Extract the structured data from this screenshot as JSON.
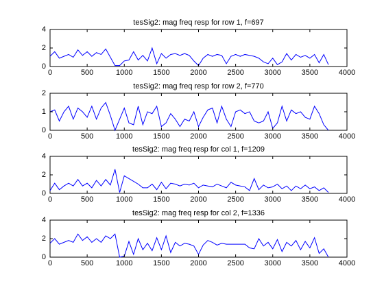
{
  "chart_data": [
    {
      "type": "line",
      "title": "tesSig2: mag freq resp for row 1, f=697",
      "x": [
        0,
        62.5,
        125,
        187.5,
        250,
        312.5,
        375,
        437.5,
        500,
        562.5,
        625,
        687.5,
        750,
        812.5,
        875,
        937.5,
        1000,
        1062.5,
        1125,
        1187.5,
        1250,
        1312.5,
        1375,
        1437.5,
        1500,
        1562.5,
        1625,
        1687.5,
        1750,
        1812.5,
        1875,
        1937.5,
        2000,
        2062.5,
        2125,
        2187.5,
        2250,
        2312.5,
        2375,
        2437.5,
        2500,
        2562.5,
        2625,
        2687.5,
        2750,
        2812.5,
        2875,
        2937.5,
        3000,
        3062.5,
        3125,
        3187.5,
        3250,
        3312.5,
        3375,
        3437.5,
        3500,
        3562.5,
        3625,
        3687.5,
        3750
      ],
      "series": [
        {
          "color": "#0000ff",
          "values": [
            1.1,
            1.6,
            0.9,
            1.1,
            1.3,
            1.0,
            1.8,
            1.2,
            1.6,
            1.1,
            1.5,
            1.3,
            1.9,
            1.0,
            0.1,
            0.1,
            0.6,
            0.7,
            1.6,
            0.7,
            1.2,
            0.6,
            2.0,
            0.3,
            1.4,
            0.9,
            1.3,
            1.4,
            1.2,
            1.4,
            1.2,
            0.6,
            0.1,
            0.9,
            1.3,
            1.1,
            1.3,
            1.2,
            0.3,
            1.1,
            1.3,
            1.1,
            1.3,
            1.2,
            1.1,
            0.9,
            0.5,
            0.3,
            0.9,
            0.2,
            0.5,
            1.4,
            0.7,
            1.3,
            1.0,
            1.2,
            0.9,
            1.3,
            0.4,
            1.3,
            0.2
          ]
        }
      ],
      "xlim": [
        0,
        4000
      ],
      "xticks": [
        0,
        500,
        1000,
        1500,
        2000,
        2500,
        3000,
        3500,
        4000
      ],
      "ylim": [
        0,
        4
      ],
      "yticks": [
        0,
        2,
        4
      ]
    },
    {
      "type": "line",
      "title": "tesSig2: mag freq resp for row 2, f=770",
      "x": [
        0,
        62.5,
        125,
        187.5,
        250,
        312.5,
        375,
        437.5,
        500,
        562.5,
        625,
        687.5,
        750,
        812.5,
        875,
        937.5,
        1000,
        1062.5,
        1125,
        1187.5,
        1250,
        1312.5,
        1375,
        1437.5,
        1500,
        1562.5,
        1625,
        1687.5,
        1750,
        1812.5,
        1875,
        1937.5,
        2000,
        2062.5,
        2125,
        2187.5,
        2250,
        2312.5,
        2375,
        2437.5,
        2500,
        2562.5,
        2625,
        2687.5,
        2750,
        2812.5,
        2875,
        2937.5,
        3000,
        3062.5,
        3125,
        3187.5,
        3250,
        3312.5,
        3375,
        3437.5,
        3500,
        3562.5,
        3625,
        3687.5,
        3750
      ],
      "series": [
        {
          "color": "#0000ff",
          "values": [
            1.0,
            1.1,
            0.5,
            1.0,
            1.3,
            0.6,
            1.2,
            1.0,
            0.7,
            1.3,
            0.6,
            1.2,
            1.5,
            0.8,
            0.0,
            0.6,
            1.2,
            0.4,
            0.3,
            1.3,
            0.3,
            1.0,
            0.9,
            1.3,
            0.2,
            0.4,
            0.9,
            0.6,
            0.2,
            0.6,
            0.5,
            1.0,
            0.2,
            0.7,
            1.1,
            1.2,
            0.4,
            1.3,
            0.6,
            0.2,
            1.0,
            1.1,
            0.9,
            1.0,
            0.5,
            0.4,
            0.5,
            1.0,
            0.1,
            0.4,
            1.3,
            0.5,
            1.1,
            0.9,
            1.0,
            0.7,
            0.6,
            1.3,
            0.9,
            0.3,
            0.0
          ]
        }
      ],
      "xlim": [
        0,
        4000
      ],
      "xticks": [
        0,
        500,
        1000,
        1500,
        2000,
        2500,
        3000,
        3500,
        4000
      ],
      "ylim": [
        0,
        2
      ],
      "yticks": [
        0,
        1,
        2
      ]
    },
    {
      "type": "line",
      "title": "tesSig2: mag freq resp for col 1, f=1209",
      "x": [
        0,
        62.5,
        125,
        187.5,
        250,
        312.5,
        375,
        437.5,
        500,
        562.5,
        625,
        687.5,
        750,
        812.5,
        875,
        937.5,
        1000,
        1062.5,
        1125,
        1187.5,
        1250,
        1312.5,
        1375,
        1437.5,
        1500,
        1562.5,
        1625,
        1687.5,
        1750,
        1812.5,
        1875,
        1937.5,
        2000,
        2062.5,
        2125,
        2187.5,
        2250,
        2312.5,
        2375,
        2437.5,
        2500,
        2562.5,
        2625,
        2687.5,
        2750,
        2812.5,
        2875,
        2937.5,
        3000,
        3062.5,
        3125,
        3187.5,
        3250,
        3312.5,
        3375,
        3437.5,
        3500,
        3562.5,
        3625,
        3687.5,
        3750
      ],
      "series": [
        {
          "color": "#0000ff",
          "values": [
            0.3,
            1.1,
            0.4,
            0.8,
            1.1,
            0.8,
            1.5,
            0.8,
            1.1,
            0.6,
            1.4,
            0.8,
            1.5,
            0.9,
            2.6,
            0.1,
            1.9,
            1.6,
            1.3,
            1.0,
            0.6,
            0.6,
            1.0,
            0.4,
            1.2,
            0.5,
            1.1,
            1.0,
            0.8,
            1.0,
            0.9,
            1.1,
            0.6,
            0.9,
            0.8,
            0.7,
            1.0,
            0.8,
            0.6,
            1.2,
            0.9,
            0.8,
            0.7,
            0.3,
            1.6,
            0.4,
            0.9,
            0.6,
            0.7,
            1.0,
            0.5,
            0.8,
            0.3,
            0.8,
            0.5,
            0.9,
            0.5,
            0.7,
            0.3,
            0.6,
            0.1
          ]
        }
      ],
      "xlim": [
        0,
        4000
      ],
      "xticks": [
        0,
        500,
        1000,
        1500,
        2000,
        2500,
        3000,
        3500,
        4000
      ],
      "ylim": [
        0,
        4
      ],
      "yticks": [
        0,
        2,
        4
      ]
    },
    {
      "type": "line",
      "title": "tesSig2: mag freq resp for col 2, f=1336",
      "x": [
        0,
        62.5,
        125,
        187.5,
        250,
        312.5,
        375,
        437.5,
        500,
        562.5,
        625,
        687.5,
        750,
        812.5,
        875,
        937.5,
        1000,
        1062.5,
        1125,
        1187.5,
        1250,
        1312.5,
        1375,
        1437.5,
        1500,
        1562.5,
        1625,
        1687.5,
        1750,
        1812.5,
        1875,
        1937.5,
        2000,
        2062.5,
        2125,
        2187.5,
        2250,
        2312.5,
        2375,
        2437.5,
        2500,
        2562.5,
        2625,
        2687.5,
        2750,
        2812.5,
        2875,
        2937.5,
        3000,
        3062.5,
        3125,
        3187.5,
        3250,
        3312.5,
        3375,
        3437.5,
        3500,
        3562.5,
        3625,
        3687.5,
        3750
      ],
      "series": [
        {
          "color": "#0000ff",
          "values": [
            1.5,
            2.0,
            1.4,
            1.6,
            1.8,
            1.6,
            2.5,
            1.8,
            2.2,
            1.6,
            2.0,
            1.6,
            2.3,
            2.0,
            2.5,
            0.0,
            0.1,
            1.7,
            0.3,
            2.0,
            0.8,
            1.5,
            0.7,
            2.1,
            0.8,
            2.3,
            0.5,
            1.6,
            1.2,
            1.5,
            1.4,
            1.2,
            0.3,
            1.3,
            1.8,
            1.6,
            1.3,
            1.5,
            1.4,
            1.4,
            1.4,
            1.4,
            1.4,
            1.0,
            0.9,
            2.0,
            1.2,
            1.6,
            0.9,
            1.9,
            0.6,
            1.6,
            1.2,
            1.8,
            0.8,
            1.7,
            1.0,
            2.1,
            0.4,
            0.9,
            0.0
          ]
        }
      ],
      "xlim": [
        0,
        4000
      ],
      "xticks": [
        0,
        500,
        1000,
        1500,
        2000,
        2500,
        3000,
        3500,
        4000
      ],
      "ylim": [
        0,
        4
      ],
      "yticks": [
        0,
        2,
        4
      ]
    }
  ]
}
